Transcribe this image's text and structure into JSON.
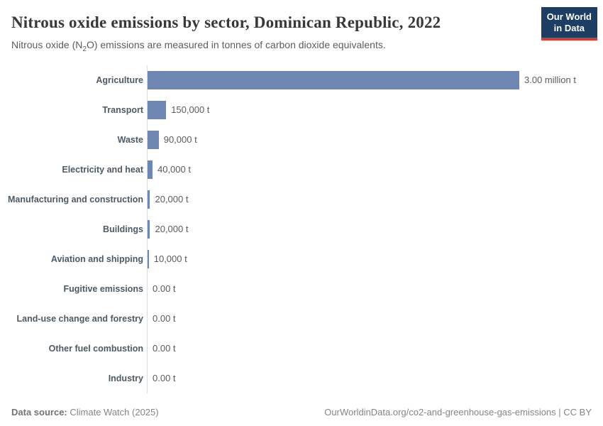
{
  "header": {
    "title": "Nitrous oxide emissions by sector, Dominican Republic, 2022",
    "subtitle_prefix": "Nitrous oxide (N",
    "subtitle_sub": "2",
    "subtitle_suffix": "O) emissions are measured in tonnes of carbon dioxide equivalents.",
    "logo": {
      "line1": "Our World",
      "line2": "in Data",
      "bg_color": "#1d3d63",
      "accent_color": "#dc3a31"
    }
  },
  "chart_data": {
    "type": "bar",
    "orientation": "horizontal",
    "title": "Nitrous oxide emissions by sector, Dominican Republic, 2022",
    "subtitle": "Nitrous oxide (N₂O) emissions are measured in tonnes of carbon dioxide equivalents.",
    "categories": [
      "Agriculture",
      "Transport",
      "Waste",
      "Electricity and heat",
      "Manufacturing and construction",
      "Buildings",
      "Aviation and shipping",
      "Fugitive emissions",
      "Land-use change and forestry",
      "Other fuel combustion",
      "Industry"
    ],
    "values": [
      3000000,
      150000,
      90000,
      40000,
      20000,
      20000,
      10000,
      0,
      0,
      0,
      0
    ],
    "value_labels": [
      "3.00 million t",
      "150,000 t",
      "90,000 t",
      "40,000 t",
      "20,000 t",
      "20,000 t",
      "10,000 t",
      "0.00 t",
      "0.00 t",
      "0.00 t",
      "0.00 t"
    ],
    "unit": "t",
    "xlim": [
      0,
      3000000
    ],
    "bar_color": "#6e87b2",
    "axis_color": "#dcdcdc",
    "grid": false,
    "legend": "none"
  },
  "footer": {
    "source_label": "Data source:",
    "source_value": " Climate Watch (2025)",
    "right_text": "OurWorldinData.org/co2-and-greenhouse-gas-emissions | CC BY"
  }
}
